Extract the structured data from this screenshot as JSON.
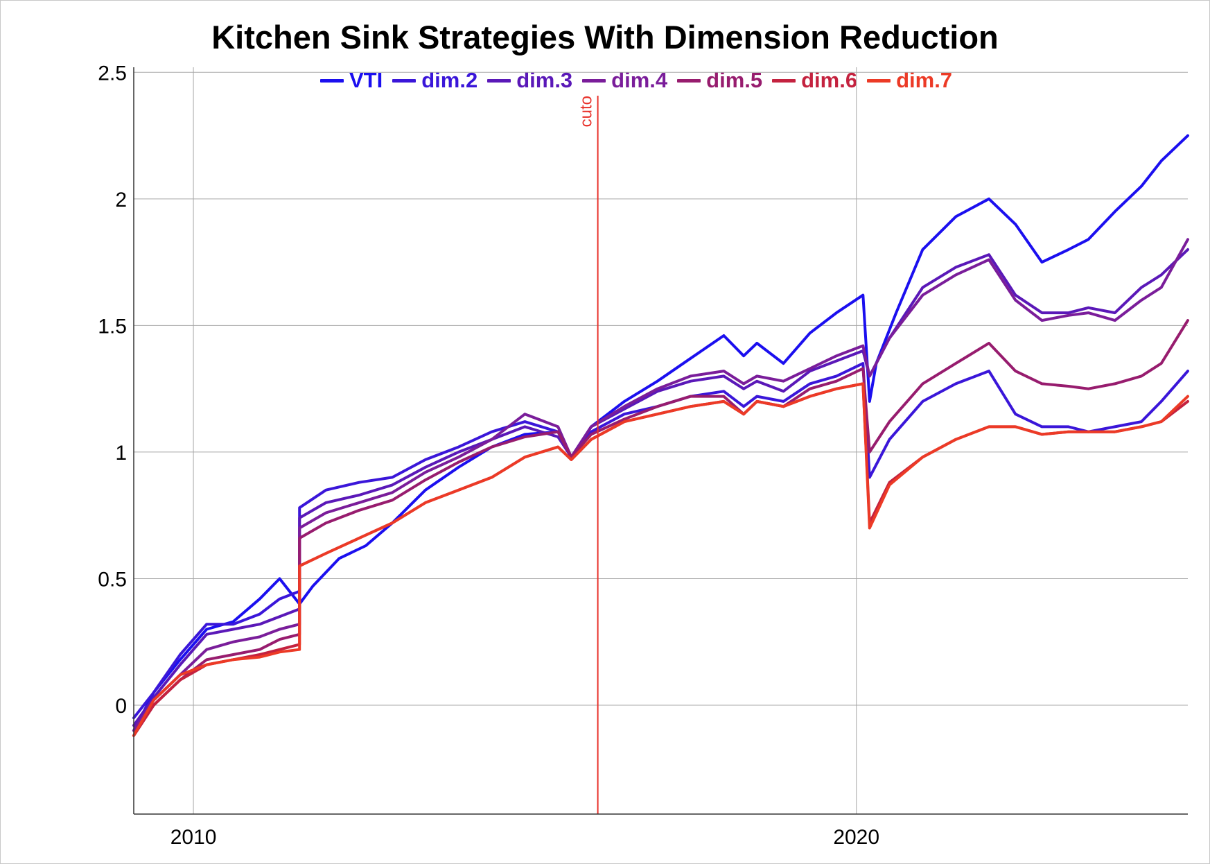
{
  "chart_data": {
    "type": "line",
    "title": "Kitchen Sink Strategies With Dimension Reduction",
    "xlabel": "",
    "ylabel": "",
    "xlim": [
      2009.1,
      2025.0
    ],
    "ylim": [
      -0.43,
      2.52
    ],
    "x_ticks": [
      {
        "value": 2010,
        "label": "2010"
      },
      {
        "value": 2020,
        "label": "2020"
      }
    ],
    "y_ticks": [
      {
        "value": 0,
        "label": "0"
      },
      {
        "value": 0.5,
        "label": "0.5"
      },
      {
        "value": 1,
        "label": "1"
      },
      {
        "value": 1.5,
        "label": "1.5"
      },
      {
        "value": 2,
        "label": "2"
      },
      {
        "value": 2.5,
        "label": "2.5"
      }
    ],
    "grid": true,
    "legend_position": "top-center",
    "annotations": [
      {
        "type": "vline",
        "x": 2016.1,
        "label": "cuto",
        "color": "#e8312a"
      }
    ],
    "series": [
      {
        "name": "VTI",
        "color": "#1b0fef",
        "points": [
          [
            2009.1,
            -0.1
          ],
          [
            2009.4,
            0.05
          ],
          [
            2009.8,
            0.18
          ],
          [
            2010.2,
            0.3
          ],
          [
            2010.6,
            0.33
          ],
          [
            2011.0,
            0.42
          ],
          [
            2011.3,
            0.5
          ],
          [
            2011.6,
            0.4
          ],
          [
            2011.8,
            0.47
          ],
          [
            2012.2,
            0.58
          ],
          [
            2012.6,
            0.63
          ],
          [
            2013.0,
            0.72
          ],
          [
            2013.5,
            0.85
          ],
          [
            2014.0,
            0.94
          ],
          [
            2014.5,
            1.02
          ],
          [
            2015.0,
            1.07
          ],
          [
            2015.5,
            1.08
          ],
          [
            2015.7,
            0.98
          ],
          [
            2016.0,
            1.1
          ],
          [
            2016.5,
            1.2
          ],
          [
            2017.0,
            1.28
          ],
          [
            2017.5,
            1.37
          ],
          [
            2018.0,
            1.46
          ],
          [
            2018.3,
            1.38
          ],
          [
            2018.5,
            1.43
          ],
          [
            2018.9,
            1.35
          ],
          [
            2019.3,
            1.47
          ],
          [
            2019.7,
            1.55
          ],
          [
            2020.1,
            1.62
          ],
          [
            2020.2,
            1.2
          ],
          [
            2020.3,
            1.35
          ],
          [
            2020.6,
            1.55
          ],
          [
            2021.0,
            1.8
          ],
          [
            2021.5,
            1.93
          ],
          [
            2022.0,
            2.0
          ],
          [
            2022.4,
            1.9
          ],
          [
            2022.8,
            1.75
          ],
          [
            2023.2,
            1.8
          ],
          [
            2023.5,
            1.84
          ],
          [
            2023.9,
            1.95
          ],
          [
            2024.3,
            2.05
          ],
          [
            2024.6,
            2.15
          ],
          [
            2025.0,
            2.25
          ]
        ]
      },
      {
        "name": "dim.2",
        "color": "#3a16d9",
        "points": [
          [
            2009.1,
            -0.05
          ],
          [
            2009.4,
            0.05
          ],
          [
            2009.8,
            0.2
          ],
          [
            2010.2,
            0.32
          ],
          [
            2010.6,
            0.32
          ],
          [
            2011.0,
            0.36
          ],
          [
            2011.3,
            0.42
          ],
          [
            2011.6,
            0.45
          ],
          [
            2011.6,
            0.78
          ],
          [
            2012.0,
            0.85
          ],
          [
            2012.5,
            0.88
          ],
          [
            2013.0,
            0.9
          ],
          [
            2013.5,
            0.97
          ],
          [
            2014.0,
            1.02
          ],
          [
            2014.5,
            1.08
          ],
          [
            2015.0,
            1.12
          ],
          [
            2015.5,
            1.08
          ],
          [
            2015.7,
            0.98
          ],
          [
            2016.0,
            1.08
          ],
          [
            2016.5,
            1.15
          ],
          [
            2017.0,
            1.18
          ],
          [
            2017.5,
            1.22
          ],
          [
            2018.0,
            1.24
          ],
          [
            2018.3,
            1.18
          ],
          [
            2018.5,
            1.22
          ],
          [
            2018.9,
            1.2
          ],
          [
            2019.3,
            1.27
          ],
          [
            2019.7,
            1.3
          ],
          [
            2020.1,
            1.35
          ],
          [
            2020.2,
            0.9
          ],
          [
            2020.5,
            1.05
          ],
          [
            2021.0,
            1.2
          ],
          [
            2021.5,
            1.27
          ],
          [
            2022.0,
            1.32
          ],
          [
            2022.4,
            1.15
          ],
          [
            2022.8,
            1.1
          ],
          [
            2023.2,
            1.1
          ],
          [
            2023.5,
            1.08
          ],
          [
            2023.9,
            1.1
          ],
          [
            2024.3,
            1.12
          ],
          [
            2024.6,
            1.2
          ],
          [
            2025.0,
            1.32
          ]
        ]
      },
      {
        "name": "dim.3",
        "color": "#5a18b8",
        "points": [
          [
            2009.1,
            -0.08
          ],
          [
            2009.4,
            0.03
          ],
          [
            2009.8,
            0.16
          ],
          [
            2010.2,
            0.28
          ],
          [
            2010.6,
            0.3
          ],
          [
            2011.0,
            0.32
          ],
          [
            2011.3,
            0.35
          ],
          [
            2011.6,
            0.38
          ],
          [
            2011.6,
            0.74
          ],
          [
            2012.0,
            0.8
          ],
          [
            2012.5,
            0.83
          ],
          [
            2013.0,
            0.87
          ],
          [
            2013.5,
            0.94
          ],
          [
            2014.0,
            1.0
          ],
          [
            2014.5,
            1.05
          ],
          [
            2015.0,
            1.1
          ],
          [
            2015.5,
            1.06
          ],
          [
            2015.7,
            0.98
          ],
          [
            2016.0,
            1.1
          ],
          [
            2016.5,
            1.17
          ],
          [
            2017.0,
            1.24
          ],
          [
            2017.5,
            1.28
          ],
          [
            2018.0,
            1.3
          ],
          [
            2018.3,
            1.25
          ],
          [
            2018.5,
            1.28
          ],
          [
            2018.9,
            1.24
          ],
          [
            2019.3,
            1.32
          ],
          [
            2019.7,
            1.36
          ],
          [
            2020.1,
            1.4
          ],
          [
            2020.2,
            1.3
          ],
          [
            2020.5,
            1.45
          ],
          [
            2021.0,
            1.65
          ],
          [
            2021.5,
            1.73
          ],
          [
            2022.0,
            1.78
          ],
          [
            2022.4,
            1.62
          ],
          [
            2022.8,
            1.55
          ],
          [
            2023.2,
            1.55
          ],
          [
            2023.5,
            1.57
          ],
          [
            2023.9,
            1.55
          ],
          [
            2024.3,
            1.65
          ],
          [
            2024.6,
            1.7
          ],
          [
            2025.0,
            1.8
          ]
        ]
      },
      {
        "name": "dim.4",
        "color": "#7a1d9a",
        "points": [
          [
            2009.1,
            -0.1
          ],
          [
            2009.4,
            0.02
          ],
          [
            2009.8,
            0.12
          ],
          [
            2010.2,
            0.22
          ],
          [
            2010.6,
            0.25
          ],
          [
            2011.0,
            0.27
          ],
          [
            2011.3,
            0.3
          ],
          [
            2011.6,
            0.32
          ],
          [
            2011.6,
            0.7
          ],
          [
            2012.0,
            0.76
          ],
          [
            2012.5,
            0.8
          ],
          [
            2013.0,
            0.84
          ],
          [
            2013.5,
            0.92
          ],
          [
            2014.0,
            0.98
          ],
          [
            2014.5,
            1.05
          ],
          [
            2015.0,
            1.15
          ],
          [
            2015.5,
            1.1
          ],
          [
            2015.7,
            0.98
          ],
          [
            2016.0,
            1.1
          ],
          [
            2016.5,
            1.18
          ],
          [
            2017.0,
            1.25
          ],
          [
            2017.5,
            1.3
          ],
          [
            2018.0,
            1.32
          ],
          [
            2018.3,
            1.27
          ],
          [
            2018.5,
            1.3
          ],
          [
            2018.9,
            1.28
          ],
          [
            2019.3,
            1.33
          ],
          [
            2019.7,
            1.38
          ],
          [
            2020.1,
            1.42
          ],
          [
            2020.2,
            1.3
          ],
          [
            2020.5,
            1.45
          ],
          [
            2021.0,
            1.62
          ],
          [
            2021.5,
            1.7
          ],
          [
            2022.0,
            1.76
          ],
          [
            2022.4,
            1.6
          ],
          [
            2022.8,
            1.52
          ],
          [
            2023.2,
            1.54
          ],
          [
            2023.5,
            1.55
          ],
          [
            2023.9,
            1.52
          ],
          [
            2024.3,
            1.6
          ],
          [
            2024.6,
            1.65
          ],
          [
            2025.0,
            1.84
          ]
        ]
      },
      {
        "name": "dim.5",
        "color": "#971c6e",
        "points": [
          [
            2009.1,
            -0.12
          ],
          [
            2009.4,
            0.0
          ],
          [
            2009.8,
            0.1
          ],
          [
            2010.2,
            0.18
          ],
          [
            2010.6,
            0.2
          ],
          [
            2011.0,
            0.22
          ],
          [
            2011.3,
            0.26
          ],
          [
            2011.6,
            0.28
          ],
          [
            2011.6,
            0.66
          ],
          [
            2012.0,
            0.72
          ],
          [
            2012.5,
            0.77
          ],
          [
            2013.0,
            0.81
          ],
          [
            2013.5,
            0.89
          ],
          [
            2014.0,
            0.96
          ],
          [
            2014.5,
            1.02
          ],
          [
            2015.0,
            1.06
          ],
          [
            2015.5,
            1.08
          ],
          [
            2015.7,
            0.98
          ],
          [
            2016.0,
            1.07
          ],
          [
            2016.5,
            1.13
          ],
          [
            2017.0,
            1.18
          ],
          [
            2017.5,
            1.22
          ],
          [
            2018.0,
            1.22
          ],
          [
            2018.3,
            1.15
          ],
          [
            2018.5,
            1.2
          ],
          [
            2018.9,
            1.18
          ],
          [
            2019.3,
            1.25
          ],
          [
            2019.7,
            1.28
          ],
          [
            2020.1,
            1.33
          ],
          [
            2020.2,
            1.0
          ],
          [
            2020.5,
            1.12
          ],
          [
            2021.0,
            1.27
          ],
          [
            2021.5,
            1.35
          ],
          [
            2022.0,
            1.43
          ],
          [
            2022.4,
            1.32
          ],
          [
            2022.8,
            1.27
          ],
          [
            2023.2,
            1.26
          ],
          [
            2023.5,
            1.25
          ],
          [
            2023.9,
            1.27
          ],
          [
            2024.3,
            1.3
          ],
          [
            2024.6,
            1.35
          ],
          [
            2025.0,
            1.52
          ]
        ]
      },
      {
        "name": "dim.6",
        "color": "#c4223f",
        "points": [
          [
            2009.1,
            -0.12
          ],
          [
            2009.4,
            0.0
          ],
          [
            2009.8,
            0.1
          ],
          [
            2010.2,
            0.16
          ],
          [
            2010.6,
            0.18
          ],
          [
            2011.0,
            0.2
          ],
          [
            2011.3,
            0.22
          ],
          [
            2011.6,
            0.24
          ],
          [
            2011.6,
            0.55
          ],
          [
            2012.0,
            0.6
          ],
          [
            2012.5,
            0.66
          ],
          [
            2013.0,
            0.72
          ],
          [
            2013.5,
            0.8
          ],
          [
            2014.0,
            0.85
          ],
          [
            2014.5,
            0.9
          ],
          [
            2015.0,
            0.98
          ],
          [
            2015.5,
            1.02
          ],
          [
            2015.7,
            0.97
          ],
          [
            2016.0,
            1.05
          ],
          [
            2016.5,
            1.12
          ],
          [
            2017.0,
            1.15
          ],
          [
            2017.5,
            1.18
          ],
          [
            2018.0,
            1.2
          ],
          [
            2018.3,
            1.15
          ],
          [
            2018.5,
            1.2
          ],
          [
            2018.9,
            1.18
          ],
          [
            2019.3,
            1.22
          ],
          [
            2019.7,
            1.25
          ],
          [
            2020.1,
            1.27
          ],
          [
            2020.2,
            0.72
          ],
          [
            2020.5,
            0.88
          ],
          [
            2021.0,
            0.98
          ],
          [
            2021.5,
            1.05
          ],
          [
            2022.0,
            1.1
          ],
          [
            2022.4,
            1.1
          ],
          [
            2022.8,
            1.07
          ],
          [
            2023.2,
            1.08
          ],
          [
            2023.5,
            1.08
          ],
          [
            2023.9,
            1.08
          ],
          [
            2024.3,
            1.1
          ],
          [
            2024.6,
            1.12
          ],
          [
            2025.0,
            1.2
          ]
        ]
      },
      {
        "name": "dim.7",
        "color": "#ec3a26",
        "points": [
          [
            2009.1,
            -0.12
          ],
          [
            2009.4,
            0.02
          ],
          [
            2009.8,
            0.12
          ],
          [
            2010.2,
            0.16
          ],
          [
            2010.6,
            0.18
          ],
          [
            2011.0,
            0.19
          ],
          [
            2011.3,
            0.21
          ],
          [
            2011.6,
            0.22
          ],
          [
            2011.6,
            0.55
          ],
          [
            2012.0,
            0.6
          ],
          [
            2012.5,
            0.66
          ],
          [
            2013.0,
            0.72
          ],
          [
            2013.5,
            0.8
          ],
          [
            2014.0,
            0.85
          ],
          [
            2014.5,
            0.9
          ],
          [
            2015.0,
            0.98
          ],
          [
            2015.5,
            1.02
          ],
          [
            2015.7,
            0.97
          ],
          [
            2016.0,
            1.05
          ],
          [
            2016.5,
            1.12
          ],
          [
            2017.0,
            1.15
          ],
          [
            2017.5,
            1.18
          ],
          [
            2018.0,
            1.2
          ],
          [
            2018.3,
            1.15
          ],
          [
            2018.5,
            1.2
          ],
          [
            2018.9,
            1.18
          ],
          [
            2019.3,
            1.22
          ],
          [
            2019.7,
            1.25
          ],
          [
            2020.1,
            1.27
          ],
          [
            2020.2,
            0.7
          ],
          [
            2020.5,
            0.87
          ],
          [
            2021.0,
            0.98
          ],
          [
            2021.5,
            1.05
          ],
          [
            2022.0,
            1.1
          ],
          [
            2022.4,
            1.1
          ],
          [
            2022.8,
            1.07
          ],
          [
            2023.2,
            1.08
          ],
          [
            2023.5,
            1.08
          ],
          [
            2023.9,
            1.08
          ],
          [
            2024.3,
            1.1
          ],
          [
            2024.6,
            1.12
          ],
          [
            2025.0,
            1.22
          ]
        ]
      }
    ]
  }
}
